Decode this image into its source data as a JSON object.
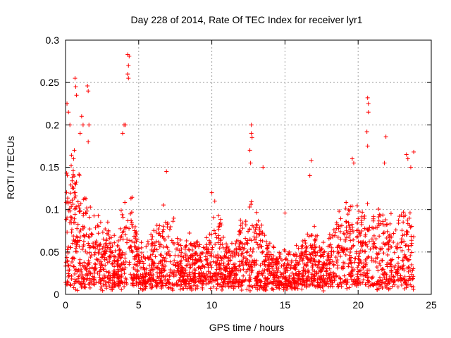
{
  "chart_data": {
    "type": "scatter",
    "title": "Day 228 of 2014, Rate Of TEC Index for receiver lyr1",
    "xlabel": "GPS time / hours",
    "ylabel": "ROTI / TECUs",
    "xlim": [
      0,
      25
    ],
    "ylim": [
      0,
      0.3
    ],
    "x_ticks": [
      0,
      5,
      10,
      15,
      20,
      25
    ],
    "x_tick_labels": [
      "0",
      "5",
      "10",
      "15",
      "20",
      "25"
    ],
    "y_ticks": [
      0,
      0.05,
      0.1,
      0.15,
      0.2,
      0.25,
      0.3
    ],
    "y_tick_labels": [
      "0",
      "0.05",
      "0.1",
      "0.15",
      "0.2",
      "0.25",
      "0.3"
    ],
    "grid": true,
    "marker": "+",
    "marker_color": "#ff0000",
    "series": [
      {
        "name": "ROTI",
        "envelope_hours": [
          0,
          0.5,
          1,
          1.5,
          2,
          2.5,
          3,
          3.5,
          4,
          4.5,
          5,
          5.5,
          6,
          6.5,
          7,
          7.5,
          8,
          8.5,
          9,
          9.5,
          10,
          10.5,
          11,
          11.5,
          12,
          12.5,
          13,
          13.5,
          14,
          14.5,
          15,
          15.5,
          16,
          16.5,
          17,
          17.5,
          18,
          18.5,
          19,
          19.5,
          20,
          20.5,
          21,
          21.5,
          22,
          22.5,
          23,
          23.5,
          23.8
        ],
        "envelope_upper": [
          0.16,
          0.15,
          0.13,
          0.12,
          0.09,
          0.09,
          0.08,
          0.06,
          0.12,
          0.12,
          0.06,
          0.06,
          0.08,
          0.09,
          0.11,
          0.08,
          0.06,
          0.07,
          0.07,
          0.06,
          0.1,
          0.1,
          0.06,
          0.06,
          0.09,
          0.11,
          0.1,
          0.08,
          0.06,
          0.05,
          0.05,
          0.05,
          0.06,
          0.07,
          0.08,
          0.06,
          0.07,
          0.09,
          0.1,
          0.11,
          0.11,
          0.1,
          0.11,
          0.1,
          0.09,
          0.09,
          0.1,
          0.12,
          0.1
        ],
        "spikes": [
          {
            "x": 0.1,
            "y": 0.225
          },
          {
            "x": 0.2,
            "y": 0.215
          },
          {
            "x": 0.3,
            "y": 0.2
          },
          {
            "x": 0.65,
            "y": 0.255
          },
          {
            "x": 0.7,
            "y": 0.245
          },
          {
            "x": 0.75,
            "y": 0.235
          },
          {
            "x": 0.6,
            "y": 0.17
          },
          {
            "x": 0.55,
            "y": 0.16
          },
          {
            "x": 1.1,
            "y": 0.21
          },
          {
            "x": 1.2,
            "y": 0.2
          },
          {
            "x": 1.0,
            "y": 0.19
          },
          {
            "x": 1.5,
            "y": 0.246
          },
          {
            "x": 1.55,
            "y": 0.24
          },
          {
            "x": 1.6,
            "y": 0.2
          },
          {
            "x": 1.55,
            "y": 0.18
          },
          {
            "x": 4.0,
            "y": 0.2
          },
          {
            "x": 4.1,
            "y": 0.2
          },
          {
            "x": 3.9,
            "y": 0.19
          },
          {
            "x": 4.25,
            "y": 0.283
          },
          {
            "x": 4.35,
            "y": 0.281
          },
          {
            "x": 4.3,
            "y": 0.27
          },
          {
            "x": 4.25,
            "y": 0.26
          },
          {
            "x": 4.3,
            "y": 0.255
          },
          {
            "x": 6.9,
            "y": 0.145
          },
          {
            "x": 10.0,
            "y": 0.12
          },
          {
            "x": 10.2,
            "y": 0.11
          },
          {
            "x": 12.7,
            "y": 0.2
          },
          {
            "x": 12.7,
            "y": 0.19
          },
          {
            "x": 12.75,
            "y": 0.185
          },
          {
            "x": 12.6,
            "y": 0.17
          },
          {
            "x": 12.65,
            "y": 0.155
          },
          {
            "x": 13.5,
            "y": 0.15
          },
          {
            "x": 15.0,
            "y": 0.096
          },
          {
            "x": 16.8,
            "y": 0.158
          },
          {
            "x": 16.7,
            "y": 0.14
          },
          {
            "x": 19.6,
            "y": 0.16
          },
          {
            "x": 19.7,
            "y": 0.155
          },
          {
            "x": 20.65,
            "y": 0.232
          },
          {
            "x": 20.7,
            "y": 0.225
          },
          {
            "x": 20.7,
            "y": 0.215
          },
          {
            "x": 20.6,
            "y": 0.192
          },
          {
            "x": 20.65,
            "y": 0.175
          },
          {
            "x": 21.9,
            "y": 0.186
          },
          {
            "x": 21.8,
            "y": 0.155
          },
          {
            "x": 23.3,
            "y": 0.165
          },
          {
            "x": 23.4,
            "y": 0.16
          },
          {
            "x": 23.8,
            "y": 0.168
          },
          {
            "x": 23.6,
            "y": 0.15
          }
        ]
      }
    ]
  }
}
